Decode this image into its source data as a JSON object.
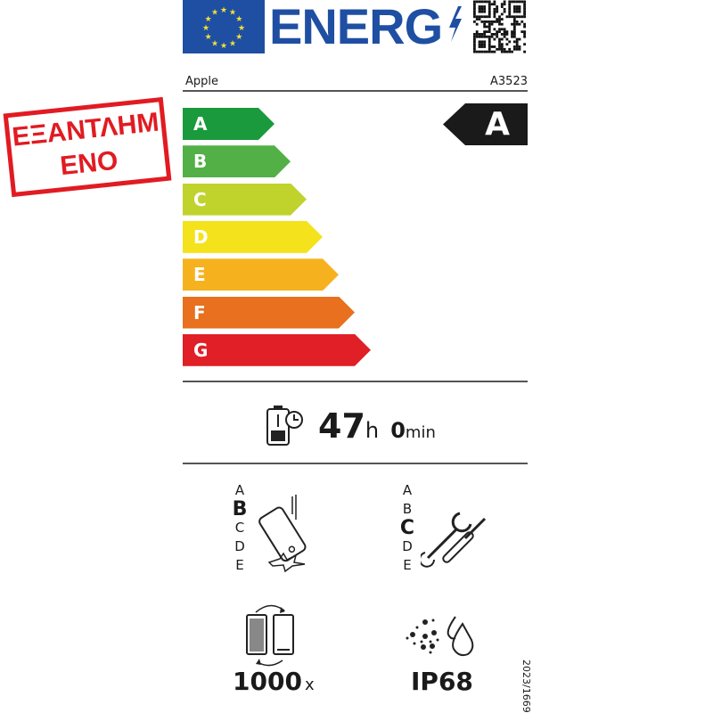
{
  "header": {
    "energy_text": "ENERG",
    "logo": "eu-flag",
    "qr": "qr-code"
  },
  "product": {
    "brand": "Apple",
    "model": "A3523"
  },
  "scale": {
    "classes": [
      {
        "label": "A",
        "color": "#1a9a3c"
      },
      {
        "label": "B",
        "color": "#52b047"
      },
      {
        "label": "C",
        "color": "#c0d22c"
      },
      {
        "label": "D",
        "color": "#f4e21c"
      },
      {
        "label": "E",
        "color": "#f6b21e"
      },
      {
        "label": "F",
        "color": "#e8701e"
      },
      {
        "label": "G",
        "color": "#e01f26"
      }
    ],
    "rating": "A"
  },
  "battery_endurance": {
    "hours": "47",
    "hours_unit": "h",
    "minutes": "0",
    "minutes_unit": "min"
  },
  "drop_resistance": {
    "classes": [
      "A",
      "B",
      "C",
      "D",
      "E"
    ],
    "selected": "B"
  },
  "repairability": {
    "classes": [
      "A",
      "B",
      "C",
      "D",
      "E"
    ],
    "selected": "C"
  },
  "battery_cycles": {
    "value": "1000",
    "unit": "x"
  },
  "ingress_protection": {
    "value": "IP68"
  },
  "regulation": "2023/1669",
  "stamp": {
    "text": "ΕΞΑΝΤΛΗΜΕΝΟ",
    "color": "#e11b22"
  }
}
